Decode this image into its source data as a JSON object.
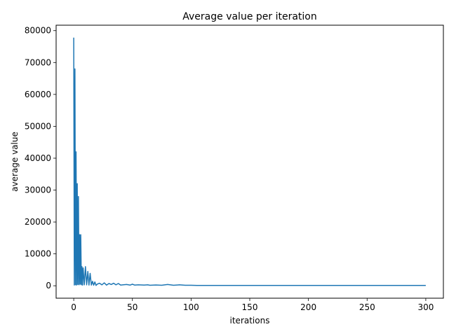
{
  "chart_data": {
    "type": "line",
    "title": "Average value per iteration",
    "xlabel": "iterations",
    "ylabel": "average value",
    "xlim": [
      -15,
      315
    ],
    "ylim": [
      -3900,
      81700
    ],
    "xticks": [
      0,
      50,
      100,
      150,
      200,
      250,
      300
    ],
    "yticks": [
      0,
      10000,
      20000,
      30000,
      40000,
      50000,
      60000,
      70000,
      80000
    ],
    "grid": false,
    "colors": {
      "line": "#1f77b4"
    },
    "series": [
      {
        "name": "",
        "x": [
          0,
          0.5,
          1,
          1.5,
          2,
          2.5,
          3,
          3.5,
          4,
          4.5,
          5,
          5.5,
          6,
          6.5,
          7,
          7.5,
          8,
          9,
          10,
          11,
          12,
          13,
          14,
          15,
          16,
          17,
          18,
          19,
          20,
          22,
          24,
          26,
          28,
          30,
          32,
          34,
          36,
          38,
          40,
          42,
          45,
          48,
          50,
          52,
          55,
          60,
          63,
          65,
          70,
          75,
          80,
          85,
          90,
          95,
          100,
          105,
          110,
          120,
          150,
          200,
          250,
          300
        ],
        "y": [
          77800,
          200,
          68000,
          300,
          42000,
          200,
          32000,
          400,
          28000,
          300,
          16000,
          500,
          16000,
          300,
          6000,
          200,
          5600,
          300,
          6000,
          300,
          4500,
          200,
          3900,
          200,
          1400,
          150,
          1200,
          100,
          500,
          800,
          300,
          900,
          200,
          700,
          400,
          800,
          300,
          700,
          200,
          300,
          400,
          200,
          500,
          200,
          300,
          200,
          300,
          150,
          250,
          150,
          400,
          150,
          300,
          150,
          150,
          100,
          100,
          100,
          100,
          100,
          100,
          100
        ]
      }
    ]
  }
}
